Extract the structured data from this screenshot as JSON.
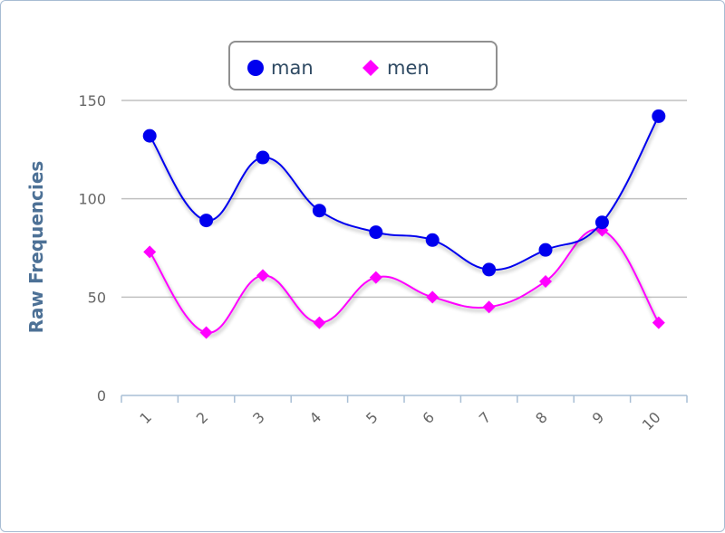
{
  "chart_data": {
    "type": "line",
    "title": "",
    "xlabel": "",
    "ylabel": "Raw Frequencies",
    "categories": [
      "1",
      "2",
      "3",
      "4",
      "5",
      "6",
      "7",
      "8",
      "9",
      "10"
    ],
    "ylim": [
      0,
      150
    ],
    "yticks": [
      "0",
      "50",
      "100",
      "150"
    ],
    "grid": true,
    "legend_position": "top",
    "series": [
      {
        "name": "man",
        "marker": "circle",
        "color": "#0000ee",
        "values": [
          132,
          89,
          121,
          94,
          83,
          79,
          64,
          74,
          88,
          142
        ]
      },
      {
        "name": "men",
        "marker": "diamond",
        "color": "#ff00ff",
        "values": [
          73,
          32,
          61,
          37,
          60,
          50,
          45,
          58,
          84,
          37
        ]
      }
    ]
  }
}
